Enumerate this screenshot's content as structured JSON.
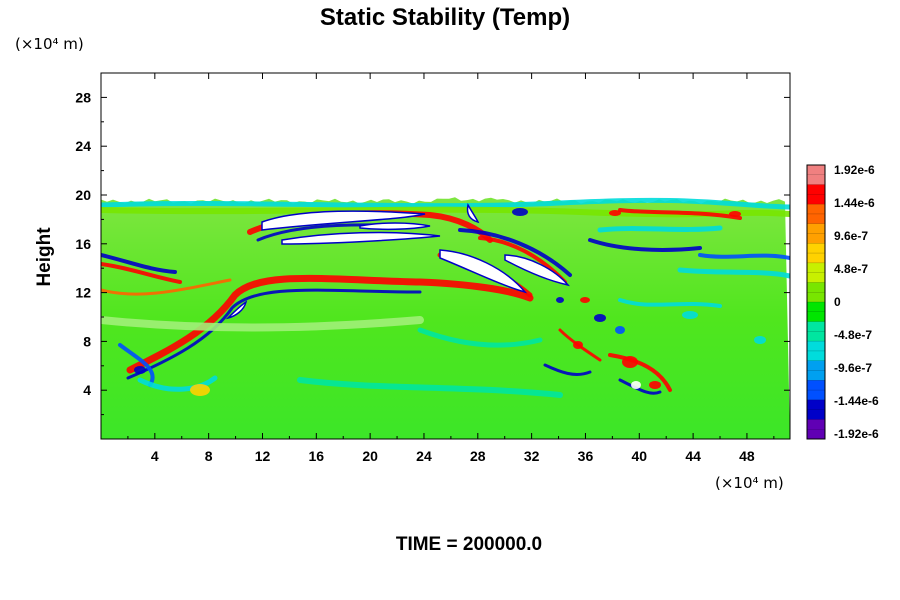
{
  "chart_data": {
    "type": "heatmap",
    "title": "Static Stability (Temp)",
    "xlabel": "",
    "ylabel": "Height",
    "x_unit": "(×10⁴ m)",
    "y_unit": "(×10⁴ m)",
    "xlim": [
      0,
      51.2
    ],
    "ylim": [
      0,
      30
    ],
    "x_ticks": [
      "4",
      "8",
      "12",
      "16",
      "20",
      "24",
      "28",
      "32",
      "36",
      "40",
      "44",
      "48"
    ],
    "y_ticks": [
      "4",
      "8",
      "12",
      "16",
      "20",
      "24",
      "28"
    ],
    "data_top_height": 19.5,
    "colorbar": {
      "min": -1.92e-06,
      "max": 1.92e-06,
      "tick_labels": [
        "1.92e-6",
        "1.44e-6",
        "9.6e-7",
        "4.8e-7",
        "0",
        "-4.8e-7",
        "-9.6e-7",
        "-1.44e-6",
        "-1.92e-6"
      ],
      "colors": [
        "#f08080",
        "#ff0000",
        "#ff6400",
        "#ffa000",
        "#ffd200",
        "#c8f000",
        "#78e600",
        "#00e600",
        "#00e6a0",
        "#00dcdc",
        "#00a0f0",
        "#0050ff",
        "#0000c8",
        "#6000b4"
      ]
    },
    "footer": "TIME = 200000.0"
  }
}
